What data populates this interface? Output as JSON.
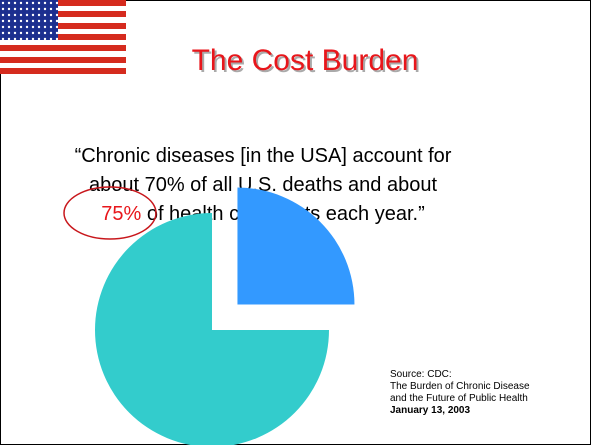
{
  "header": {
    "title": "The Cost Burden"
  },
  "quote": {
    "lines": [
      "“Chronic diseases [in the USA] account for",
      "about 70% of all U.S. deaths and about"
    ],
    "highlight": "75%",
    "rest": " of health care costs each year.”"
  },
  "source": {
    "lines": [
      "Source: CDC:",
      "The Burden of Chronic Disease",
      "and the Future of Public Health"
    ],
    "date": "January 13, 2003"
  },
  "chart_data": {
    "type": "pie",
    "values": [
      25,
      75
    ],
    "colors": [
      "#3399ff",
      "#33cccc"
    ],
    "exploded": [
      true,
      false
    ]
  }
}
